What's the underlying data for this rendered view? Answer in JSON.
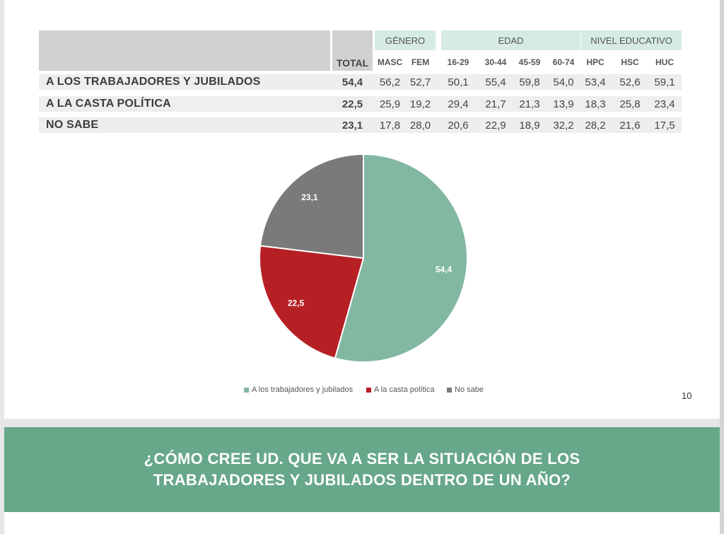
{
  "table": {
    "total_header": "TOTAL",
    "groups": [
      {
        "label": "GÉNERO",
        "subs": [
          "MASC",
          "FEM"
        ]
      },
      {
        "label": "EDAD",
        "subs": [
          "16-29",
          "30-44",
          "45-59",
          "60-74"
        ]
      },
      {
        "label": "NIVEL EDUCATIVO",
        "subs": [
          "HPC",
          "HSC",
          "HUC"
        ]
      }
    ],
    "rows": [
      {
        "label": "A LOS TRABAJADORES Y JUBILADOS",
        "total": "54,4",
        "values": [
          "56,2",
          "52,7",
          "50,1",
          "55,4",
          "59,8",
          "54,0",
          "53,4",
          "52,6",
          "59,1"
        ]
      },
      {
        "label": "A LA CASTA POLÍTICA",
        "total": "22,5",
        "values": [
          "25,9",
          "19,2",
          "29,4",
          "21,7",
          "21,3",
          "13,9",
          "18,3",
          "25,8",
          "23,4"
        ]
      },
      {
        "label": "NO SABE",
        "total": "23,1",
        "values": [
          "17,8",
          "28,0",
          "20,6",
          "22,9",
          "18,9",
          "32,2",
          "28,2",
          "21,6",
          "17,5"
        ]
      }
    ]
  },
  "chart_data": {
    "type": "pie",
    "categories": [
      "A los trabajadores y jubilados",
      "A la casta política",
      "No sabe"
    ],
    "values": [
      54.4,
      22.5,
      23.1
    ],
    "data_labels": [
      "54,4",
      "22,5",
      "23,1"
    ],
    "colors": [
      "#82b7a2",
      "#b62025",
      "#7a7a7a"
    ],
    "legend_position": "bottom"
  },
  "page_number": "10",
  "banner": {
    "line1": "¿CÓMO CREE UD. QUE VA A SER LA SITUACIÓN DE LOS",
    "line2": "TRABAJADORES Y JUBILADOS DENTRO DE UN AÑO?"
  }
}
